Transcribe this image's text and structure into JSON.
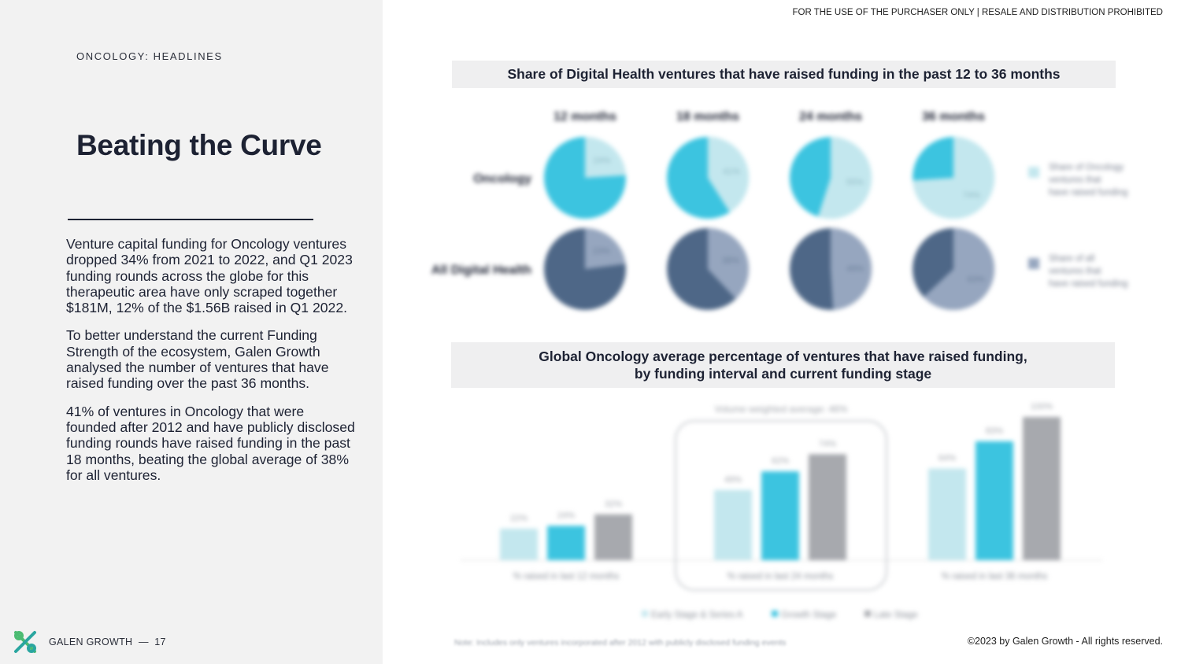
{
  "header": {
    "disclaimer": "FOR THE USE OF THE PURCHASER ONLY | RESALE AND DISTRIBUTION PROHIBITED"
  },
  "left": {
    "section_label": "ONCOLOGY: HEADLINES",
    "title": "Beating the Curve",
    "paragraphs": [
      "Venture capital funding for Oncology ventures dropped 34% from 2021 to 2022, and Q1 2023 funding rounds across the globe for this therapeutic area have only scraped together $181M, 12% of the $1.56B raised in Q1 2022.",
      "To better understand the current Funding Strength of the ecosystem, Galen Growth analysed the number of ventures that have raised funding over the past 36 months.",
      "41% of ventures in Oncology that were founded after 2012 and have publicly disclosed funding rounds have raised funding in the past 18 months, beating the global average of 38% for all ventures."
    ]
  },
  "footer": {
    "brand": "GALEN GROWTH",
    "page_number": "17",
    "separator": "—",
    "copyright": "©2023 by Galen Growth  - All rights reserved.",
    "note": "Note: Includes only ventures incorporated after 2012 with publicly disclosed funding events"
  },
  "colors": {
    "light_blue": "#c3e7ee",
    "cyan": "#3cc4e0",
    "gray": "#a7a9ae",
    "navy": "#4e6787",
    "slate": "#96a6bf",
    "logo_green": "#4cbb72",
    "logo_teal": "#2aa6a0"
  },
  "chart_data": [
    {
      "type": "pie",
      "title": "Share of Digital Health ventures that have raised funding in the past 12 to 36 months",
      "columns": [
        "12 months",
        "18 months",
        "24 months",
        "36 months"
      ],
      "rows": [
        {
          "name": "Oncology",
          "values": [
            24,
            41,
            55,
            74
          ],
          "legend": "Share of Oncology ventures that have raised funding"
        },
        {
          "name": "All Digital Health",
          "values": [
            23,
            38,
            49,
            63
          ],
          "legend": "Share of all ventures that have raised funding"
        }
      ]
    },
    {
      "type": "bar",
      "title": "Global Oncology average percentage of ventures that have raised funding, by funding interval and current funding stage",
      "annotation": "Volume weighted average: 46%",
      "categories": [
        "% raised in last 12 months",
        "% raised in last 24 months",
        "% raised in last 36 months"
      ],
      "series": [
        {
          "name": "Early Stage & Series A",
          "values": [
            22,
            49,
            64
          ]
        },
        {
          "name": "Growth Stage",
          "values": [
            24,
            62,
            83
          ]
        },
        {
          "name": "Late Stage",
          "values": [
            32,
            74,
            100
          ]
        }
      ],
      "ylim": [
        0,
        100
      ],
      "legend": "bottom"
    }
  ]
}
